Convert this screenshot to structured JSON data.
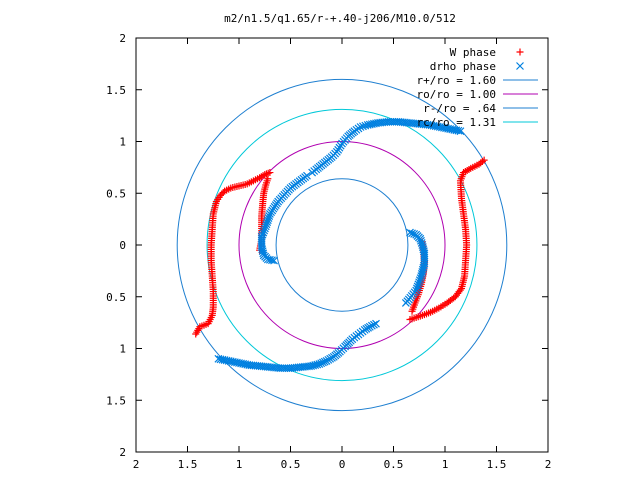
{
  "chart_data": {
    "type": "scatter",
    "title": "m2/n1.5/q1.65/r-+.40-j206/M10.0/512",
    "xlabel": "",
    "ylabel": "",
    "xlim": [
      -2,
      2
    ],
    "ylim": [
      -2,
      2
    ],
    "x_tick_values": [
      -2,
      -1.5,
      -1,
      -0.5,
      0,
      0.5,
      1,
      1.5,
      2
    ],
    "x_tick_labels": [
      "2",
      "1.5",
      "1",
      "0.5",
      "0",
      "0.5",
      "1",
      "1.5",
      "2"
    ],
    "y_tick_values": [
      2,
      1.5,
      1,
      0.5,
      0,
      -0.5,
      -1,
      -1.5,
      -2
    ],
    "y_tick_labels": [
      "2",
      "1.5",
      "1",
      "0.5",
      "0",
      "0.5",
      "1",
      "1.5",
      "2"
    ],
    "grid": false,
    "legend_position": "top-right",
    "legend": [
      {
        "label": "W phase",
        "marker": "+",
        "color": "#ff0000"
      },
      {
        "label": "drho phase",
        "marker": "x",
        "color": "#0080e0"
      },
      {
        "label": "r+/ro = 1.60",
        "line": true,
        "color": "#1e7fd0"
      },
      {
        "label": "ro/ro = 1.00",
        "line": true,
        "color": "#b000b0"
      },
      {
        "label": "r-/ro = .64",
        "line": true,
        "color": "#1e7fd0"
      },
      {
        "label": "rc/ro = 1.31",
        "line": true,
        "color": "#00c8d8"
      }
    ],
    "circles": [
      {
        "name": "r+/ro = 1.60",
        "r": 1.6,
        "color": "#1e7fd0"
      },
      {
        "name": "ro/ro = 1.00",
        "r": 1.0,
        "color": "#b000b0"
      },
      {
        "name": "r-/ro = .64",
        "r": 0.64,
        "color": "#1e7fd0"
      },
      {
        "name": "rc/ro = 1.31",
        "r": 1.31,
        "color": "#00c8d8"
      }
    ],
    "series": [
      {
        "name": "W phase",
        "marker": "+",
        "color": "#ff0000",
        "arms": [
          [
            [
              -1.42,
              -0.86
            ],
            [
              -1.38,
              -0.79
            ],
            [
              -1.3,
              -0.76
            ],
            [
              -1.26,
              -0.68
            ],
            [
              -1.25,
              -0.6
            ],
            [
              -1.25,
              -0.45
            ],
            [
              -1.26,
              -0.3
            ],
            [
              -1.27,
              -0.15
            ],
            [
              -1.27,
              0.0
            ],
            [
              -1.26,
              0.15
            ],
            [
              -1.25,
              0.3
            ],
            [
              -1.22,
              0.42
            ],
            [
              -1.18,
              0.48
            ],
            [
              -1.14,
              0.52
            ],
            [
              -1.08,
              0.55
            ],
            [
              -1.0,
              0.57
            ],
            [
              -0.92,
              0.59
            ],
            [
              -0.86,
              0.62
            ],
            [
              -0.8,
              0.65
            ],
            [
              -0.75,
              0.68
            ],
            [
              -0.7,
              0.7
            ]
          ],
          [
            [
              -0.72,
              0.64
            ],
            [
              -0.74,
              0.58
            ],
            [
              -0.76,
              0.5
            ],
            [
              -0.77,
              0.4
            ],
            [
              -0.78,
              0.28
            ],
            [
              -0.78,
              0.16
            ],
            [
              -0.78,
              0.05
            ],
            [
              -0.8,
              -0.05
            ]
          ],
          [
            [
              1.38,
              0.82
            ],
            [
              1.33,
              0.78
            ],
            [
              1.25,
              0.74
            ],
            [
              1.18,
              0.7
            ],
            [
              1.15,
              0.62
            ],
            [
              1.16,
              0.45
            ],
            [
              1.18,
              0.3
            ],
            [
              1.2,
              0.15
            ],
            [
              1.21,
              0.0
            ],
            [
              1.2,
              -0.15
            ],
            [
              1.19,
              -0.3
            ],
            [
              1.16,
              -0.42
            ],
            [
              1.1,
              -0.5
            ],
            [
              1.02,
              -0.56
            ],
            [
              0.94,
              -0.61
            ],
            [
              0.86,
              -0.65
            ],
            [
              0.78,
              -0.68
            ],
            [
              0.72,
              -0.7
            ],
            [
              0.66,
              -0.72
            ]
          ],
          [
            [
              0.68,
              -0.64
            ],
            [
              0.71,
              -0.56
            ],
            [
              0.74,
              -0.48
            ],
            [
              0.77,
              -0.38
            ],
            [
              0.79,
              -0.28
            ],
            [
              0.8,
              -0.16
            ],
            [
              0.79,
              -0.05
            ],
            [
              0.78,
              0.03
            ]
          ]
        ]
      },
      {
        "name": "drho phase",
        "marker": "x",
        "color": "#0080e0",
        "arms": [
          [
            [
              -1.2,
              -1.1
            ],
            [
              -1.1,
              -1.12
            ],
            [
              -1.0,
              -1.14
            ],
            [
              -0.9,
              -1.16
            ],
            [
              -0.8,
              -1.17
            ],
            [
              -0.7,
              -1.18
            ],
            [
              -0.6,
              -1.19
            ],
            [
              -0.5,
              -1.19
            ],
            [
              -0.4,
              -1.18
            ],
            [
              -0.3,
              -1.17
            ],
            [
              -0.22,
              -1.15
            ],
            [
              -0.15,
              -1.12
            ],
            [
              -0.08,
              -1.08
            ],
            [
              -0.02,
              -1.03
            ],
            [
              0.03,
              -0.98
            ],
            [
              0.07,
              -0.94
            ],
            [
              0.1,
              -0.91
            ],
            [
              0.14,
              -0.88
            ],
            [
              0.18,
              -0.85
            ],
            [
              0.22,
              -0.82
            ],
            [
              0.27,
              -0.79
            ],
            [
              0.33,
              -0.76
            ]
          ],
          [
            [
              0.62,
              -0.56
            ],
            [
              0.72,
              -0.44
            ],
            [
              0.77,
              -0.3
            ],
            [
              0.8,
              -0.18
            ],
            [
              0.8,
              -0.08
            ],
            [
              0.78,
              0.0
            ],
            [
              0.76,
              0.06
            ],
            [
              0.72,
              0.1
            ],
            [
              0.66,
              0.12
            ]
          ],
          [
            [
              1.15,
              1.1
            ],
            [
              1.05,
              1.12
            ],
            [
              0.95,
              1.14
            ],
            [
              0.85,
              1.16
            ],
            [
              0.75,
              1.17
            ],
            [
              0.65,
              1.18
            ],
            [
              0.55,
              1.19
            ],
            [
              0.45,
              1.19
            ],
            [
              0.35,
              1.18
            ],
            [
              0.25,
              1.16
            ],
            [
              0.18,
              1.14
            ],
            [
              0.12,
              1.1
            ],
            [
              0.06,
              1.05
            ],
            [
              0.0,
              0.98
            ],
            [
              -0.05,
              0.9
            ],
            [
              -0.1,
              0.85
            ],
            [
              -0.15,
              0.81
            ],
            [
              -0.2,
              0.77
            ],
            [
              -0.25,
              0.73
            ],
            [
              -0.29,
              0.7
            ]
          ],
          [
            [
              -0.34,
              0.67
            ],
            [
              -0.5,
              0.55
            ],
            [
              -0.62,
              0.42
            ],
            [
              -0.7,
              0.3
            ],
            [
              -0.74,
              0.18
            ],
            [
              -0.78,
              0.08
            ],
            [
              -0.78,
              -0.02
            ],
            [
              -0.76,
              -0.1
            ],
            [
              -0.72,
              -0.14
            ],
            [
              -0.66,
              -0.15
            ]
          ]
        ]
      }
    ]
  }
}
